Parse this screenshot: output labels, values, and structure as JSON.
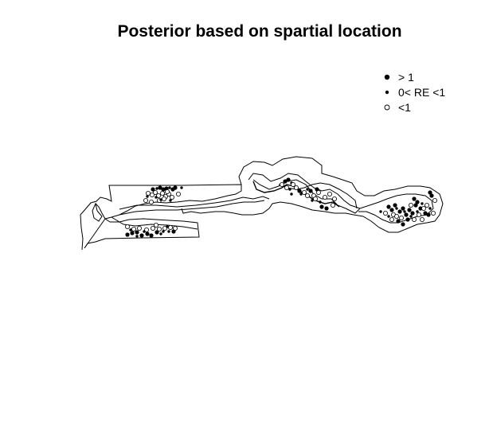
{
  "title": "Posterior based on spartial location",
  "legend": {
    "items": [
      {
        "label": "> 1",
        "symbol": "filled-circle-large"
      },
      {
        "label": "0< RE <1",
        "symbol": "filled-circle-small"
      },
      {
        "label": "<1",
        "symbol": "open-circle"
      }
    ]
  },
  "colors": {
    "ink": "#000000",
    "background": "#ffffff"
  }
}
